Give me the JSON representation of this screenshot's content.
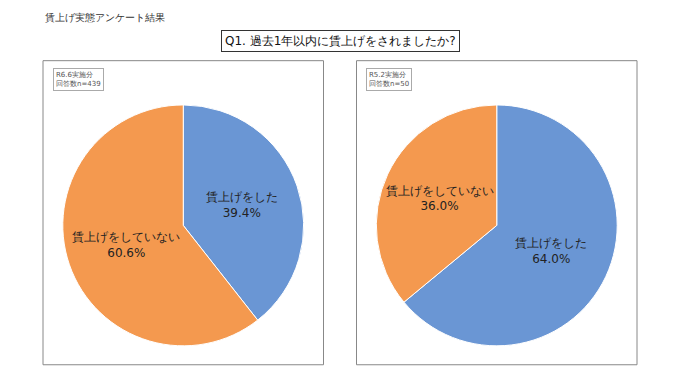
{
  "title": "賃上げ実態アンケート結果",
  "subtitle": "Q1. 過去1年以内に賃上げをされましたか?",
  "chart_data": [
    {
      "type": "pie",
      "note": [
        "R6.6実施分",
        "回答数n=439"
      ],
      "categories": [
        "賃上げをした",
        "賃上げをしていない"
      ],
      "values": [
        39.4,
        60.6
      ],
      "value_labels": [
        "39.4%",
        "60.6%"
      ],
      "colors": [
        "#6a96d4",
        "#f4994f"
      ],
      "data_labels": true
    },
    {
      "type": "pie",
      "note": [
        "R5.2実施分",
        "回答数n=50"
      ],
      "categories": [
        "賃上げをした",
        "賃上げをしていない"
      ],
      "values": [
        64.0,
        36.0
      ],
      "value_labels": [
        "64.0%",
        "36.0%"
      ],
      "colors": [
        "#6a96d4",
        "#f4994f"
      ],
      "data_labels": true
    }
  ]
}
